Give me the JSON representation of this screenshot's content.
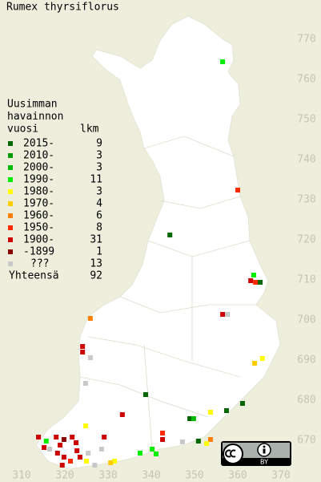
{
  "title": "Rumex thyrsiflorus",
  "legend": {
    "heading": [
      "Uusimman",
      "havainnon",
      "vuosi"
    ],
    "count_heading": "lkm",
    "rows": [
      {
        "label": "2015-",
        "count": 9,
        "color": "#006600"
      },
      {
        "label": "2010-",
        "count": 3,
        "color": "#009900"
      },
      {
        "label": "2000-",
        "count": 3,
        "color": "#00bb00"
      },
      {
        "label": "1990-",
        "count": 11,
        "color": "#00ee00"
      },
      {
        "label": "1980-",
        "count": 3,
        "color": "#ffff00"
      },
      {
        "label": "1970-",
        "count": 4,
        "color": "#ffcc00"
      },
      {
        "label": "1960-",
        "count": 6,
        "color": "#ff7f00"
      },
      {
        "label": "1950-",
        "count": 8,
        "color": "#ff2a00"
      },
      {
        "label": "1900-",
        "count": 31,
        "color": "#cc0000"
      },
      {
        "label": "-1899",
        "count": 1,
        "color": "#880000"
      },
      {
        "label": "???",
        "count": 13,
        "color": "#c8c8c8"
      }
    ],
    "total_label": "Yhteensä",
    "total": 92
  },
  "axes": {
    "northing_ticks": [
      770,
      760,
      750,
      740,
      730,
      720,
      710,
      700,
      690,
      680,
      670
    ],
    "easting_ticks": [
      310,
      320,
      330,
      340,
      350,
      360,
      370
    ]
  },
  "observations": [
    {
      "e": 356.5,
      "n": 764.4,
      "period": 3
    },
    {
      "e": 360.0,
      "n": 732.4,
      "period": 7
    },
    {
      "e": 344.3,
      "n": 721.2,
      "period": 0
    },
    {
      "e": 363.7,
      "n": 711.2,
      "period": 3
    },
    {
      "e": 363.0,
      "n": 709.8,
      "period": 8
    },
    {
      "e": 364.1,
      "n": 709.4,
      "period": 7
    },
    {
      "e": 365.2,
      "n": 709.4,
      "period": 0
    },
    {
      "e": 356.5,
      "n": 701.4,
      "period": 8
    },
    {
      "e": 357.6,
      "n": 701.4,
      "period": 10
    },
    {
      "e": 325.9,
      "n": 700.4,
      "period": 6
    },
    {
      "e": 324.1,
      "n": 693.4,
      "period": 8
    },
    {
      "e": 324.1,
      "n": 692.0,
      "period": 8
    },
    {
      "e": 325.9,
      "n": 690.6,
      "period": 10
    },
    {
      "e": 365.7,
      "n": 690.4,
      "period": 4
    },
    {
      "e": 363.9,
      "n": 689.2,
      "period": 5
    },
    {
      "e": 324.8,
      "n": 684.2,
      "period": 10
    },
    {
      "e": 338.7,
      "n": 681.4,
      "period": 0
    },
    {
      "e": 361.1,
      "n": 679.2,
      "period": 0
    },
    {
      "e": 357.4,
      "n": 677.4,
      "period": 0
    },
    {
      "e": 333.3,
      "n": 676.4,
      "period": 8
    },
    {
      "e": 348.9,
      "n": 675.4,
      "period": 0
    },
    {
      "e": 349.8,
      "n": 675.4,
      "period": 2
    },
    {
      "e": 353.7,
      "n": 677.0,
      "period": 4
    },
    {
      "e": 324.8,
      "n": 673.6,
      "period": 4
    },
    {
      "e": 342.6,
      "n": 671.8,
      "period": 7
    },
    {
      "e": 342.6,
      "n": 670.2,
      "period": 8
    },
    {
      "e": 353.7,
      "n": 670.2,
      "period": 6
    },
    {
      "e": 352.8,
      "n": 669.2,
      "period": 4
    },
    {
      "e": 350.9,
      "n": 669.8,
      "period": 0
    },
    {
      "e": 347.2,
      "n": 669.6,
      "period": 10
    },
    {
      "e": 337.4,
      "n": 666.8,
      "period": 3
    },
    {
      "e": 340.2,
      "n": 667.8,
      "period": 3
    },
    {
      "e": 341.1,
      "n": 666.6,
      "period": 3
    },
    {
      "e": 331.5,
      "n": 664.8,
      "period": 4
    },
    {
      "e": 330.6,
      "n": 664.4,
      "period": 5
    },
    {
      "e": 328.5,
      "n": 667.8,
      "period": 10
    },
    {
      "e": 329.1,
      "n": 670.8,
      "period": 8
    },
    {
      "e": 313.9,
      "n": 670.8,
      "period": 8
    },
    {
      "e": 315.7,
      "n": 669.8,
      "period": 3
    },
    {
      "e": 318.0,
      "n": 670.8,
      "period": 8
    },
    {
      "e": 318.9,
      "n": 668.8,
      "period": 8
    },
    {
      "e": 319.8,
      "n": 670.2,
      "period": 9
    },
    {
      "e": 321.7,
      "n": 670.8,
      "period": 8
    },
    {
      "e": 322.6,
      "n": 669.4,
      "period": 8
    },
    {
      "e": 318.3,
      "n": 666.8,
      "period": 8
    },
    {
      "e": 319.8,
      "n": 665.8,
      "period": 8
    },
    {
      "e": 321.3,
      "n": 664.8,
      "period": 7
    },
    {
      "e": 323.5,
      "n": 665.8,
      "period": 8
    },
    {
      "e": 325.4,
      "n": 666.8,
      "period": 10
    },
    {
      "e": 325.0,
      "n": 664.8,
      "period": 4
    },
    {
      "e": 316.5,
      "n": 667.8,
      "period": 10
    },
    {
      "e": 319.4,
      "n": 663.8,
      "period": 8
    },
    {
      "e": 326.9,
      "n": 663.8,
      "period": 10
    },
    {
      "e": 315.2,
      "n": 668.2,
      "period": 8
    },
    {
      "e": 322.8,
      "n": 667.4,
      "period": 8
    }
  ],
  "license": "BY"
}
